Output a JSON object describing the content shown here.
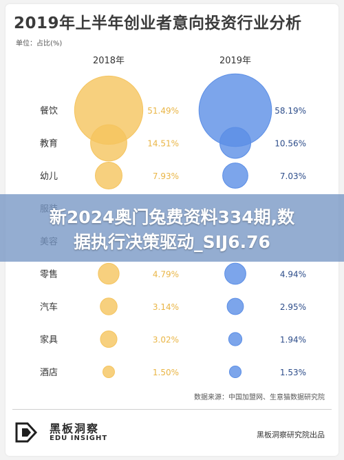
{
  "header": {
    "title": "2019年上半年创业者意向投资行业分析",
    "unit": "单位：占比(%)"
  },
  "chart_data": {
    "type": "bubble",
    "columns": [
      "2018年",
      "2019年"
    ],
    "categories": [
      "餐饮",
      "教育",
      "幼儿",
      "服装",
      "美容",
      "零售",
      "汽车",
      "家具",
      "酒店"
    ],
    "series": [
      {
        "name": "2018年",
        "values": [
          51.49,
          14.51,
          7.93,
          null,
          null,
          4.79,
          3.14,
          3.02,
          1.5
        ],
        "labels": [
          "51.49%",
          "14.51%",
          "7.93%",
          "",
          "",
          "4.79%",
          "3.14%",
          "3.02%",
          "1.50%"
        ],
        "color": "#f5c45e",
        "label_color": "#e9b545"
      },
      {
        "name": "2019年",
        "values": [
          58.19,
          10.56,
          7.03,
          null,
          null,
          4.94,
          2.95,
          1.94,
          1.53
        ],
        "labels": [
          "58.19%",
          "10.56%",
          "7.03%",
          "",
          "",
          "4.94%",
          "2.95%",
          "1.94%",
          "1.53%"
        ],
        "color": "#5b8ee6",
        "label_color": "#2d4d8a"
      }
    ]
  },
  "banner": {
    "line1": "新2024奥门兔费资料334期,数",
    "line2": "据执行决策驱动_SIJ6.76"
  },
  "footer": {
    "source": "数据来源：中国加盟网、生意猫数据研究院",
    "logo_cn": "黑板洞察",
    "logo_en": "EDU INSIGHT",
    "publisher": "黑板洞察研究院出品"
  },
  "colors": {
    "gold": "#f5c45e",
    "blue": "#5b8ee6",
    "banner": "#7696c4"
  }
}
